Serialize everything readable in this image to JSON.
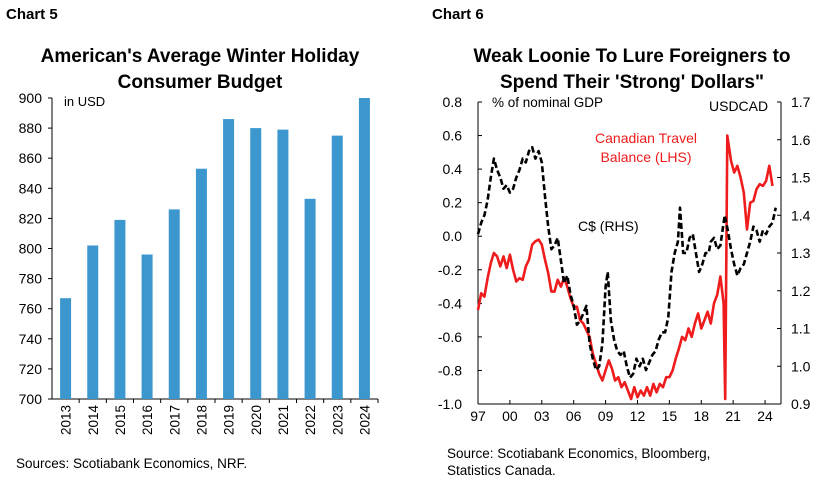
{
  "chart5": {
    "label": "Chart 5",
    "title_line1": "American's Average Winter Holiday",
    "title_line2": "Consumer Budget",
    "source": "Sources: Scotiabank Economics, NRF."
  },
  "chart6": {
    "label": "Chart 6",
    "title_line1": "Weak Loonie To Lure Foreigners to",
    "title_line2": "Spend Their 'Strong' Dollars\"",
    "source_line1": "Source: Scotiabank Economics, Bloomberg,",
    "source_line2": "Statistics Canada."
  },
  "colors": {
    "bar": "#3d97cf",
    "red": "#ee1c1c",
    "black": "#000000"
  },
  "chart_data": [
    {
      "type": "bar",
      "title": "American's Average Winter Holiday Consumer Budget",
      "unit_label": "in USD",
      "categories": [
        "2013",
        "2014",
        "2015",
        "2016",
        "2017",
        "2018",
        "2019",
        "2020",
        "2021",
        "2022",
        "2023",
        "2024"
      ],
      "values": [
        767,
        802,
        819,
        796,
        826,
        853,
        886,
        880,
        879,
        833,
        875,
        900
      ],
      "ylim": [
        700,
        900
      ],
      "yticks": [
        700,
        720,
        740,
        760,
        780,
        800,
        820,
        840,
        860,
        880,
        900
      ],
      "grid": false,
      "source": "Sources: Scotiabank Economics, NRF."
    },
    {
      "type": "line",
      "title": "Weak Loonie To Lure Foreigners to Spend Their 'Strong' Dollars\"",
      "left_axis_label": "% of nominal GDP",
      "right_axis_label": "USDCAD",
      "x_tick_labels": [
        "97",
        "00",
        "03",
        "06",
        "09",
        "12",
        "15",
        "18",
        "21",
        "24"
      ],
      "x_tick_years": [
        1997,
        2000,
        2003,
        2006,
        2009,
        2012,
        2015,
        2018,
        2021,
        2024
      ],
      "xlim": [
        1997,
        2025.5
      ],
      "ylim_left": [
        -1.0,
        0.8
      ],
      "yticks_left": [
        0.8,
        0.6,
        0.4,
        0.2,
        0.0,
        -0.2,
        -0.4,
        -0.6,
        -0.8,
        -1.0
      ],
      "yticks_left_labels": [
        "0.8",
        "0.6",
        "0.4",
        "0.2",
        "0.0",
        "-0.2",
        "-0.4",
        "-0.6",
        "-0.8",
        "-1.0"
      ],
      "ylim_right": [
        0.9,
        1.7
      ],
      "yticks_right": [
        1.7,
        1.6,
        1.5,
        1.4,
        1.3,
        1.2,
        1.1,
        1.0,
        0.9
      ],
      "yticks_right_labels": [
        "1.7",
        "1.6",
        "1.5",
        "1.4",
        "1.3",
        "1.2",
        "1.1",
        "1.0",
        "0.9"
      ],
      "grid": false,
      "series": [
        {
          "name": "Canadian Travel Balance (LHS)",
          "label_line1": "Canadian Travel",
          "label_line2": "Balance (LHS)",
          "axis": "left",
          "style": "solid",
          "color": "#ee1c1c",
          "points": [
            [
              1997.0,
              -0.44
            ],
            [
              1997.3,
              -0.34
            ],
            [
              1997.6,
              -0.36
            ],
            [
              1997.9,
              -0.25
            ],
            [
              1998.2,
              -0.16
            ],
            [
              1998.5,
              -0.1
            ],
            [
              1998.8,
              -0.12
            ],
            [
              1999.1,
              -0.18
            ],
            [
              1999.4,
              -0.12
            ],
            [
              1999.7,
              -0.19
            ],
            [
              2000.0,
              -0.11
            ],
            [
              2000.3,
              -0.2
            ],
            [
              2000.6,
              -0.27
            ],
            [
              2000.9,
              -0.25
            ],
            [
              2001.2,
              -0.26
            ],
            [
              2001.5,
              -0.18
            ],
            [
              2001.8,
              -0.14
            ],
            [
              2002.1,
              -0.05
            ],
            [
              2002.4,
              -0.03
            ],
            [
              2002.7,
              -0.02
            ],
            [
              2003.0,
              -0.05
            ],
            [
              2003.3,
              -0.14
            ],
            [
              2003.6,
              -0.22
            ],
            [
              2003.9,
              -0.33
            ],
            [
              2004.2,
              -0.33
            ],
            [
              2004.5,
              -0.26
            ],
            [
              2004.8,
              -0.3
            ],
            [
              2005.1,
              -0.25
            ],
            [
              2005.4,
              -0.3
            ],
            [
              2005.7,
              -0.37
            ],
            [
              2006.0,
              -0.42
            ],
            [
              2006.3,
              -0.42
            ],
            [
              2006.6,
              -0.5
            ],
            [
              2006.9,
              -0.52
            ],
            [
              2007.2,
              -0.56
            ],
            [
              2007.5,
              -0.6
            ],
            [
              2007.8,
              -0.7
            ],
            [
              2008.1,
              -0.76
            ],
            [
              2008.4,
              -0.82
            ],
            [
              2008.7,
              -0.86
            ],
            [
              2009.0,
              -0.8
            ],
            [
              2009.3,
              -0.74
            ],
            [
              2009.6,
              -0.79
            ],
            [
              2009.9,
              -0.86
            ],
            [
              2010.2,
              -0.84
            ],
            [
              2010.5,
              -0.9
            ],
            [
              2010.8,
              -0.87
            ],
            [
              2011.1,
              -0.92
            ],
            [
              2011.4,
              -0.97
            ],
            [
              2011.7,
              -0.9
            ],
            [
              2012.0,
              -0.96
            ],
            [
              2012.3,
              -0.92
            ],
            [
              2012.6,
              -0.95
            ],
            [
              2012.9,
              -0.9
            ],
            [
              2013.2,
              -0.95
            ],
            [
              2013.5,
              -0.88
            ],
            [
              2013.8,
              -0.93
            ],
            [
              2014.1,
              -0.88
            ],
            [
              2014.4,
              -0.9
            ],
            [
              2014.7,
              -0.84
            ],
            [
              2015.0,
              -0.84
            ],
            [
              2015.3,
              -0.8
            ],
            [
              2015.6,
              -0.73
            ],
            [
              2015.9,
              -0.67
            ],
            [
              2016.2,
              -0.6
            ],
            [
              2016.5,
              -0.62
            ],
            [
              2016.8,
              -0.55
            ],
            [
              2017.1,
              -0.6
            ],
            [
              2017.4,
              -0.52
            ],
            [
              2017.7,
              -0.46
            ],
            [
              2018.0,
              -0.55
            ],
            [
              2018.3,
              -0.5
            ],
            [
              2018.6,
              -0.45
            ],
            [
              2018.9,
              -0.52
            ],
            [
              2019.2,
              -0.4
            ],
            [
              2019.5,
              -0.35
            ],
            [
              2019.8,
              -0.24
            ],
            [
              2020.1,
              -0.4
            ],
            [
              2020.25,
              -0.97
            ],
            [
              2020.45,
              0.6
            ],
            [
              2020.8,
              0.45
            ],
            [
              2021.1,
              0.38
            ],
            [
              2021.4,
              0.42
            ],
            [
              2021.7,
              0.35
            ],
            [
              2022.0,
              0.26
            ],
            [
              2022.3,
              0.04
            ],
            [
              2022.6,
              0.2
            ],
            [
              2022.9,
              0.21
            ],
            [
              2023.2,
              0.28
            ],
            [
              2023.5,
              0.31
            ],
            [
              2023.8,
              0.3
            ],
            [
              2024.1,
              0.33
            ],
            [
              2024.4,
              0.42
            ],
            [
              2024.7,
              0.3
            ]
          ]
        },
        {
          "name": "C$ (RHS)",
          "label_line1": "C$ (RHS)",
          "axis": "right",
          "style": "dashed",
          "color": "#000000",
          "points": [
            [
              1997.0,
              1.35
            ],
            [
              1997.3,
              1.38
            ],
            [
              1997.6,
              1.4
            ],
            [
              1997.9,
              1.44
            ],
            [
              1998.2,
              1.5
            ],
            [
              1998.5,
              1.55
            ],
            [
              1998.8,
              1.52
            ],
            [
              1999.1,
              1.5
            ],
            [
              1999.4,
              1.47
            ],
            [
              1999.7,
              1.48
            ],
            [
              2000.0,
              1.46
            ],
            [
              2000.3,
              1.47
            ],
            [
              2000.6,
              1.5
            ],
            [
              2000.9,
              1.52
            ],
            [
              2001.2,
              1.55
            ],
            [
              2001.5,
              1.54
            ],
            [
              2001.8,
              1.57
            ],
            [
              2002.1,
              1.58
            ],
            [
              2002.4,
              1.55
            ],
            [
              2002.7,
              1.57
            ],
            [
              2003.0,
              1.54
            ],
            [
              2003.3,
              1.45
            ],
            [
              2003.6,
              1.37
            ],
            [
              2003.9,
              1.31
            ],
            [
              2004.2,
              1.32
            ],
            [
              2004.5,
              1.34
            ],
            [
              2004.8,
              1.28
            ],
            [
              2005.1,
              1.22
            ],
            [
              2005.4,
              1.24
            ],
            [
              2005.7,
              1.19
            ],
            [
              2006.0,
              1.16
            ],
            [
              2006.3,
              1.11
            ],
            [
              2006.6,
              1.12
            ],
            [
              2006.9,
              1.14
            ],
            [
              2007.2,
              1.16
            ],
            [
              2007.5,
              1.06
            ],
            [
              2007.8,
              1.02
            ],
            [
              2008.1,
              0.99
            ],
            [
              2008.4,
              1.0
            ],
            [
              2008.7,
              1.06
            ],
            [
              2009.0,
              1.21
            ],
            [
              2009.2,
              1.25
            ],
            [
              2009.5,
              1.12
            ],
            [
              2009.8,
              1.07
            ],
            [
              2010.1,
              1.04
            ],
            [
              2010.4,
              1.03
            ],
            [
              2010.7,
              1.04
            ],
            [
              2011.0,
              1.0
            ],
            [
              2011.3,
              0.97
            ],
            [
              2011.6,
              0.98
            ],
            [
              2011.9,
              1.02
            ],
            [
              2012.2,
              1.0
            ],
            [
              2012.5,
              1.02
            ],
            [
              2012.8,
              0.99
            ],
            [
              2013.1,
              1.01
            ],
            [
              2013.4,
              1.03
            ],
            [
              2013.7,
              1.04
            ],
            [
              2014.0,
              1.07
            ],
            [
              2014.3,
              1.09
            ],
            [
              2014.6,
              1.09
            ],
            [
              2014.9,
              1.13
            ],
            [
              2015.2,
              1.25
            ],
            [
              2015.5,
              1.3
            ],
            [
              2015.8,
              1.33
            ],
            [
              2016.0,
              1.42
            ],
            [
              2016.3,
              1.3
            ],
            [
              2016.6,
              1.3
            ],
            [
              2016.9,
              1.34
            ],
            [
              2017.2,
              1.35
            ],
            [
              2017.5,
              1.3
            ],
            [
              2017.8,
              1.25
            ],
            [
              2018.1,
              1.27
            ],
            [
              2018.4,
              1.3
            ],
            [
              2018.7,
              1.3
            ],
            [
              2018.9,
              1.33
            ],
            [
              2019.2,
              1.34
            ],
            [
              2019.5,
              1.31
            ],
            [
              2019.8,
              1.32
            ],
            [
              2020.2,
              1.4
            ],
            [
              2020.5,
              1.36
            ],
            [
              2020.8,
              1.31
            ],
            [
              2021.1,
              1.27
            ],
            [
              2021.4,
              1.24
            ],
            [
              2021.7,
              1.26
            ],
            [
              2022.0,
              1.27
            ],
            [
              2022.3,
              1.3
            ],
            [
              2022.6,
              1.33
            ],
            [
              2022.9,
              1.37
            ],
            [
              2023.2,
              1.36
            ],
            [
              2023.5,
              1.33
            ],
            [
              2023.8,
              1.36
            ],
            [
              2024.1,
              1.35
            ],
            [
              2024.4,
              1.37
            ],
            [
              2024.7,
              1.38
            ],
            [
              2025.0,
              1.42
            ]
          ]
        }
      ],
      "source": "Source: Scotiabank Economics, Bloomberg, Statistics Canada."
    }
  ]
}
